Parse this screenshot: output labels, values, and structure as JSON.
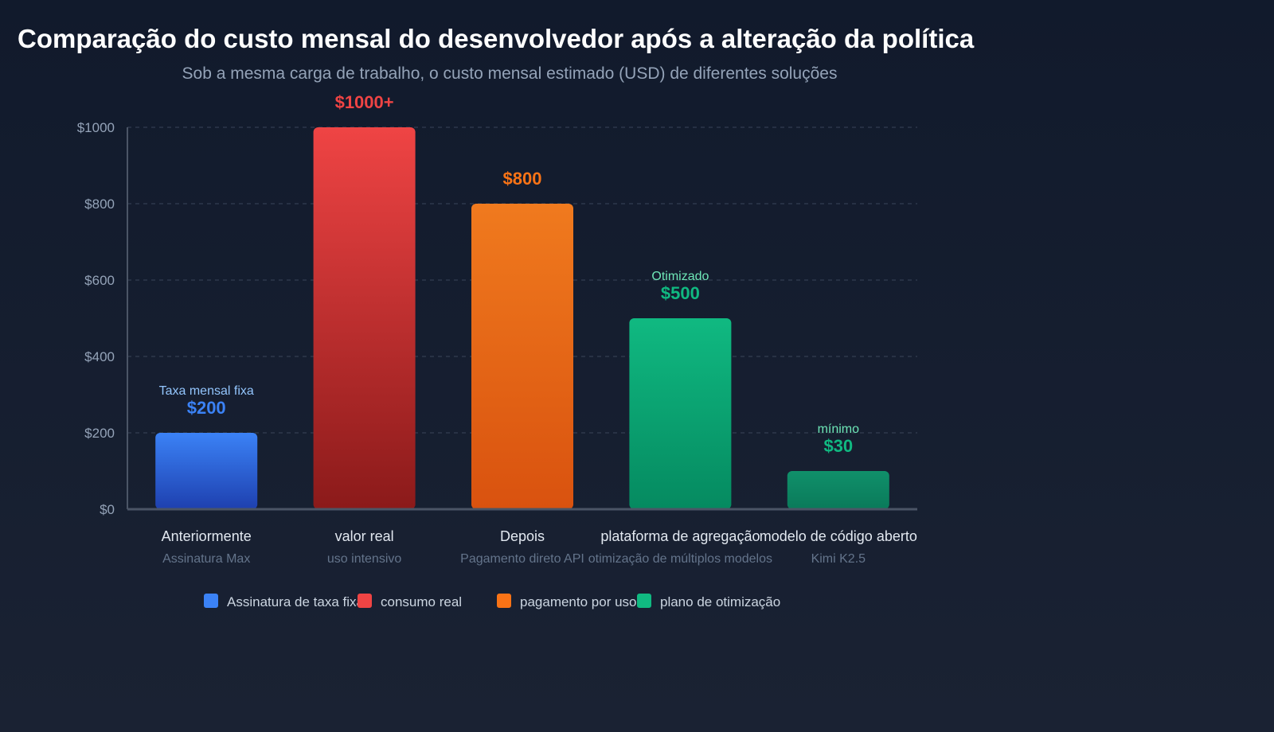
{
  "chart_data": {
    "type": "bar",
    "title": "Comparação do custo mensal do desenvolvedor após a alteração da política",
    "subtitle": "Sob a mesma carga de trabalho, o custo mensal estimado (USD) de diferentes soluções",
    "ylim": [
      0,
      1000
    ],
    "yticks": [
      0,
      200,
      400,
      600,
      800,
      1000
    ],
    "ytick_labels": [
      "$0",
      "$200",
      "$400",
      "$600",
      "$800",
      "$1000"
    ],
    "grid": true,
    "legend_position": "bottom",
    "categories": [
      "Anteriormente",
      "valor real",
      "Depois",
      "plataforma de agregação",
      "modelo de código aberto"
    ],
    "subcategories": [
      "Assinatura Max",
      "uso intensivo",
      "Pagamento direto API",
      "otimização de múltiplos modelos",
      "Kimi K2.5"
    ],
    "values": [
      200,
      1000,
      800,
      500,
      30
    ],
    "value_labels": [
      "$200",
      "$1000+",
      "$800",
      "$500",
      "$30"
    ],
    "annotations": [
      "Taxa mensal fixa",
      "",
      "",
      "Otimizado",
      "mínimo"
    ],
    "bar_colors": [
      [
        "#3b82f6",
        "#1e40af"
      ],
      [
        "#ef4444",
        "#8b1a1a"
      ],
      [
        "#f07a1e",
        "#d9520f"
      ],
      [
        "#10b981",
        "#058a60"
      ],
      [
        "#10906a",
        "#0a7a5a"
      ]
    ],
    "label_colors": [
      "#3b82f6",
      "#ef4444",
      "#f97316",
      "#10b981",
      "#10b981"
    ],
    "annotation_colors": [
      "#93c5fd",
      "",
      "",
      "#6ee7b7",
      "#6ee7b7"
    ],
    "legend": [
      {
        "name": "Assinatura de taxa fixa",
        "color": "#3b82f6"
      },
      {
        "name": "consumo real",
        "color": "#ef4444"
      },
      {
        "name": "pagamento por uso",
        "color": "#f97316"
      },
      {
        "name": "plano de otimização",
        "color": "#10b981"
      }
    ]
  }
}
